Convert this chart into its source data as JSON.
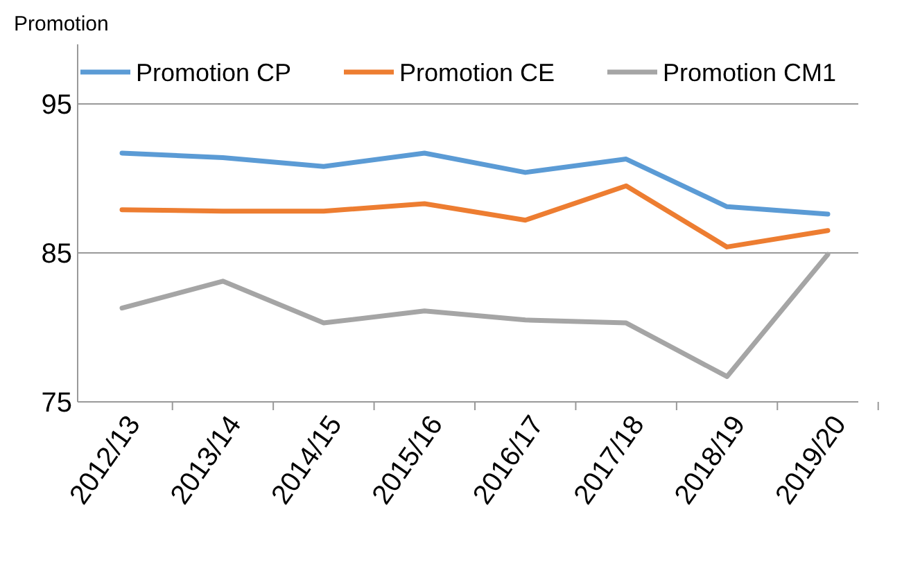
{
  "chart_data": {
    "type": "line",
    "title": "Promotion",
    "categories": [
      "2012/13",
      "2013/14",
      "2014/15",
      "2015/16",
      "2016/17",
      "2017/18",
      "2018/19",
      "2019/20"
    ],
    "series": [
      {
        "name": "Promotion CP",
        "color": "#5b9bd5",
        "values": [
          91.7,
          91.4,
          90.8,
          91.7,
          90.4,
          91.3,
          88.1,
          87.6
        ]
      },
      {
        "name": "Promotion CE",
        "color": "#ed7d31",
        "values": [
          87.9,
          87.8,
          87.8,
          88.3,
          87.2,
          89.5,
          85.4,
          86.5
        ]
      },
      {
        "name": "Promotion CM1",
        "color": "#a5a5a5",
        "values": [
          81.3,
          83.1,
          80.3,
          81.1,
          80.5,
          80.3,
          76.7,
          84.9
        ]
      }
    ],
    "ylim": [
      75,
      99
    ],
    "yticks": [
      75,
      85,
      95
    ],
    "grid": "y",
    "legend": "top",
    "marker": "none",
    "line_style": "solid"
  }
}
